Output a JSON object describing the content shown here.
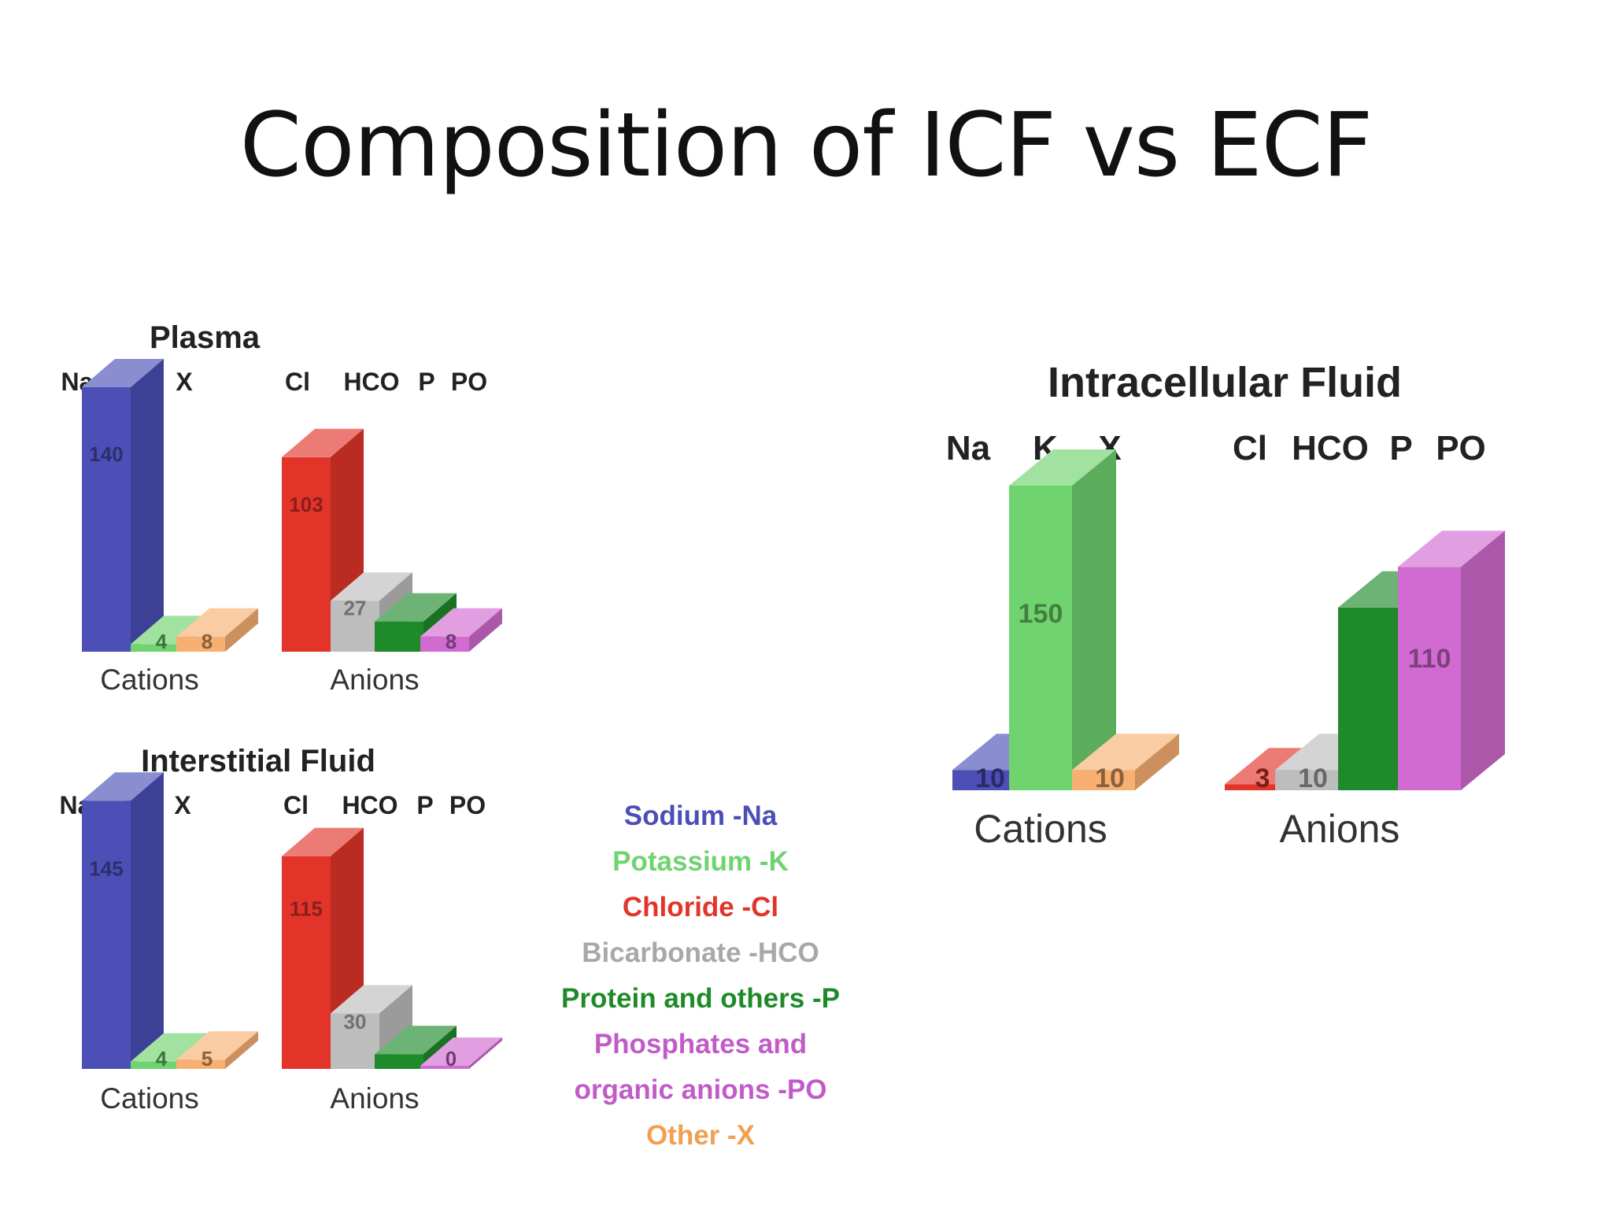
{
  "title": "Composition of ICF vs ECF",
  "colors": {
    "Na": "#4b4fb6",
    "K": "#6fd36f",
    "X": "#f7b071",
    "Cl": "#e3342a",
    "HCO": "#bdbdbd",
    "P": "#1f8a2a",
    "PO": "#d16bd1"
  },
  "legend": [
    {
      "label": "Sodium -Na",
      "color": "#4b4fb6"
    },
    {
      "label": "Potassium -K",
      "color": "#6fd36f"
    },
    {
      "label": "Chloride -Cl",
      "color": "#e3342a"
    },
    {
      "label": "Bicarbonate -HCO",
      "color": "#a8a8a8"
    },
    {
      "label": "Protein and others -P",
      "color": "#1f8a2a"
    },
    {
      "label": "Phosphates and",
      "color": "#c25bc9"
    },
    {
      "label": "organic anions -PO",
      "color": "#c25bc9"
    },
    {
      "label": "Other -X",
      "color": "#f0a050"
    }
  ],
  "chart_data": [
    {
      "type": "bar",
      "title": "Plasma",
      "column_labels": [
        "Na",
        "K",
        "X",
        "Cl",
        "HCO",
        "P",
        "PO"
      ],
      "groups": [
        {
          "label": "Cations",
          "categories": [
            "Na",
            "K",
            "X"
          ],
          "values": [
            140,
            4,
            8
          ],
          "value_labels": [
            "140",
            "4",
            "8"
          ]
        },
        {
          "label": "Anions",
          "categories": [
            "Cl",
            "HCO",
            "P",
            "PO"
          ],
          "values": [
            103,
            27,
            16,
            8
          ],
          "value_labels": [
            "103",
            "27",
            "",
            "8"
          ]
        }
      ],
      "ylim": [
        0,
        150
      ]
    },
    {
      "type": "bar",
      "title": "Interstitial Fluid",
      "column_labels": [
        "Na",
        "K",
        "X",
        "Cl",
        "HCO",
        "P",
        "PO"
      ],
      "groups": [
        {
          "label": "Cations",
          "categories": [
            "Na",
            "K",
            "X"
          ],
          "values": [
            145,
            4,
            5
          ],
          "value_labels": [
            "145",
            "4",
            "5"
          ]
        },
        {
          "label": "Anions",
          "categories": [
            "Cl",
            "HCO",
            "P",
            "PO"
          ],
          "values": [
            115,
            30,
            8,
            0
          ],
          "value_labels": [
            "115",
            "30",
            "",
            "0"
          ]
        }
      ],
      "ylim": [
        0,
        150
      ]
    },
    {
      "type": "bar",
      "title": "Intracellular Fluid",
      "column_labels": [
        "Na",
        "K",
        "X",
        "Cl",
        "HCO",
        "P",
        "PO"
      ],
      "groups": [
        {
          "label": "Cations",
          "categories": [
            "Na",
            "K",
            "X"
          ],
          "values": [
            10,
            150,
            10
          ],
          "value_labels": [
            "10",
            "150",
            "10"
          ]
        },
        {
          "label": "Anions",
          "categories": [
            "Cl",
            "HCO",
            "P",
            "PO"
          ],
          "values": [
            3,
            10,
            90,
            110
          ],
          "value_labels": [
            "3",
            "10",
            "",
            "110"
          ]
        }
      ],
      "ylim": [
        0,
        150
      ]
    }
  ]
}
